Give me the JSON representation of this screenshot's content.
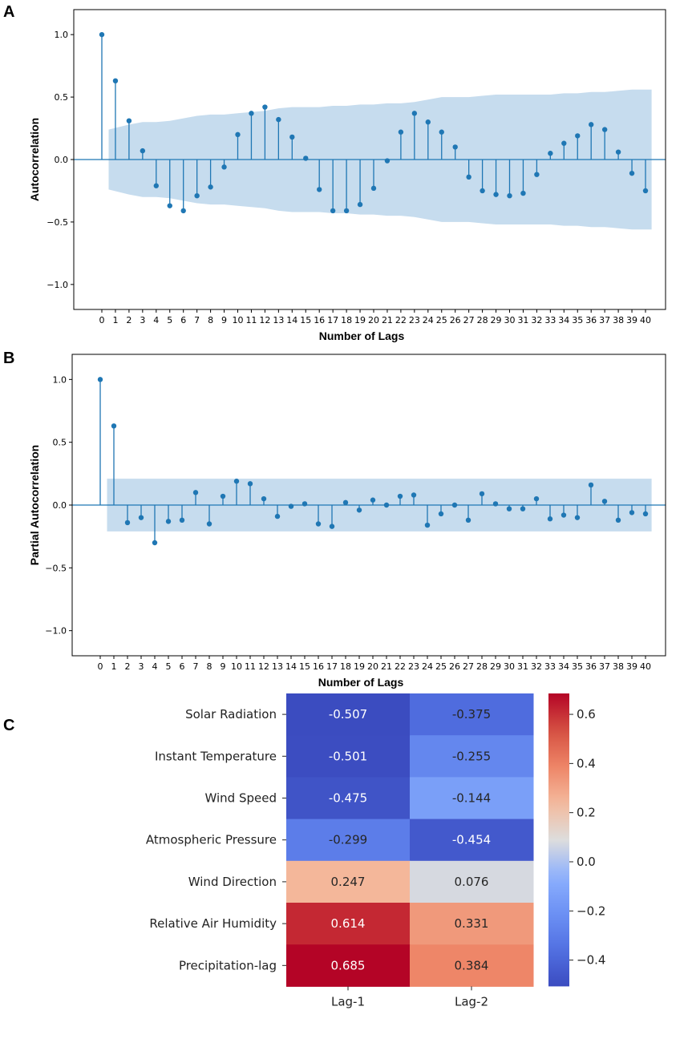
{
  "colors": {
    "stem": "#1f77b4",
    "band": "#c6dcee",
    "axis": "#000000"
  },
  "chart_data": [
    {
      "panel": "A",
      "type": "stem",
      "ylabel": "Autocorrelation",
      "xlabel": "Number of Lags",
      "ylim": [
        -1.2,
        1.2
      ],
      "yticks": [
        "1.0",
        "0.5",
        "0.0",
        "−0.5",
        "−1.0"
      ],
      "ytick_values": [
        1.0,
        0.5,
        0.0,
        -0.5,
        -1.0
      ],
      "x": [
        0,
        1,
        2,
        3,
        4,
        5,
        6,
        7,
        8,
        9,
        10,
        11,
        12,
        13,
        14,
        15,
        16,
        17,
        18,
        19,
        20,
        21,
        22,
        23,
        24,
        25,
        26,
        27,
        28,
        29,
        30,
        31,
        32,
        33,
        34,
        35,
        36,
        37,
        38,
        39,
        40
      ],
      "xtick_labels": [
        "0",
        "1",
        "2",
        "3",
        "4",
        "5",
        "6",
        "7",
        "8",
        "9",
        "10",
        "11",
        "12",
        "13",
        "14",
        "15",
        "16",
        "17",
        "18",
        "19",
        "20",
        "21",
        "22",
        "23",
        "24",
        "25",
        "26",
        "27",
        "28",
        "29",
        "30",
        "31",
        "32",
        "33",
        "34",
        "35",
        "36",
        "37",
        "38",
        "39",
        "40"
      ],
      "values": [
        1.0,
        0.63,
        0.31,
        0.07,
        -0.21,
        -0.37,
        -0.41,
        -0.29,
        -0.22,
        -0.06,
        0.2,
        0.37,
        0.42,
        0.32,
        0.18,
        0.01,
        -0.24,
        -0.41,
        -0.41,
        -0.36,
        -0.23,
        -0.01,
        0.22,
        0.37,
        0.3,
        0.22,
        0.1,
        -0.14,
        -0.25,
        -0.28,
        -0.29,
        -0.27,
        -0.12,
        0.05,
        0.13,
        0.19,
        0.28,
        0.24,
        0.06,
        -0.11,
        -0.25
      ],
      "confidence_band": [
        0.21,
        0.24,
        0.28,
        0.3,
        0.3,
        0.31,
        0.33,
        0.35,
        0.36,
        0.36,
        0.37,
        0.38,
        0.39,
        0.41,
        0.42,
        0.42,
        0.42,
        0.43,
        0.43,
        0.44,
        0.44,
        0.45,
        0.45,
        0.46,
        0.48,
        0.5,
        0.5,
        0.5,
        0.51,
        0.52,
        0.52,
        0.52,
        0.52,
        0.52,
        0.53,
        0.53,
        0.54,
        0.54,
        0.55,
        0.56,
        0.56
      ]
    },
    {
      "panel": "B",
      "type": "stem",
      "ylabel": "Partial Autocorrelation",
      "xlabel": "Number of Lags",
      "ylim": [
        -1.2,
        1.2
      ],
      "yticks": [
        "1.0",
        "0.5",
        "0.0",
        "−0.5",
        "−1.0"
      ],
      "ytick_values": [
        1.0,
        0.5,
        0.0,
        -0.5,
        -1.0
      ],
      "x": [
        0,
        1,
        2,
        3,
        4,
        5,
        6,
        7,
        8,
        9,
        10,
        11,
        12,
        13,
        14,
        15,
        16,
        17,
        18,
        19,
        20,
        21,
        22,
        23,
        24,
        25,
        26,
        27,
        28,
        29,
        30,
        31,
        32,
        33,
        34,
        35,
        36,
        37,
        38,
        39,
        40
      ],
      "xtick_labels": [
        "0",
        "1",
        "2",
        "3",
        "4",
        "5",
        "6",
        "7",
        "8",
        "9",
        "10",
        "11",
        "12",
        "13",
        "14",
        "15",
        "16",
        "17",
        "18",
        "19",
        "20",
        "21",
        "22",
        "23",
        "24",
        "25",
        "26",
        "27",
        "28",
        "29",
        "30",
        "31",
        "32",
        "33",
        "34",
        "35",
        "36",
        "37",
        "38",
        "39",
        "40"
      ],
      "values": [
        1.0,
        0.63,
        -0.14,
        -0.1,
        -0.3,
        -0.13,
        -0.12,
        0.1,
        -0.15,
        0.07,
        0.19,
        0.17,
        0.05,
        -0.09,
        -0.01,
        0.01,
        -0.15,
        -0.17,
        0.02,
        -0.04,
        0.04,
        0.0,
        0.07,
        0.08,
        -0.16,
        -0.07,
        0.0,
        -0.12,
        0.09,
        0.01,
        -0.03,
        -0.03,
        0.05,
        -0.11,
        -0.08,
        -0.1,
        0.16,
        0.03,
        -0.12,
        -0.06,
        -0.07
      ],
      "confidence_band": [
        0.21,
        0.21,
        0.21,
        0.21,
        0.21,
        0.21,
        0.21,
        0.21,
        0.21,
        0.21,
        0.21,
        0.21,
        0.21,
        0.21,
        0.21,
        0.21,
        0.21,
        0.21,
        0.21,
        0.21,
        0.21,
        0.21,
        0.21,
        0.21,
        0.21,
        0.21,
        0.21,
        0.21,
        0.21,
        0.21,
        0.21,
        0.21,
        0.21,
        0.21,
        0.21,
        0.21,
        0.21,
        0.21,
        0.21,
        0.21,
        0.21
      ]
    },
    {
      "panel": "C",
      "type": "heatmap",
      "rows": [
        "Solar Radiation",
        "Instant Temperature",
        "Wind Speed",
        "Atmospheric Pressure",
        "Wind Direction",
        "Relative Air Humidity",
        "Precipitation-lag"
      ],
      "columns": [
        "Lag-1",
        "Lag-2"
      ],
      "values": [
        [
          -0.507,
          -0.375
        ],
        [
          -0.501,
          -0.255
        ],
        [
          -0.475,
          -0.144
        ],
        [
          -0.299,
          -0.454
        ],
        [
          0.247,
          0.076
        ],
        [
          0.614,
          0.331
        ],
        [
          0.685,
          0.384
        ]
      ],
      "value_labels": [
        [
          "-0.507",
          "-0.375"
        ],
        [
          "-0.501",
          "-0.255"
        ],
        [
          "-0.475",
          "-0.144"
        ],
        [
          "-0.299",
          "-0.454"
        ],
        [
          "0.247",
          "0.076"
        ],
        [
          "0.614",
          "0.331"
        ],
        [
          "0.685",
          "0.384"
        ]
      ],
      "colormap": "coolwarm",
      "vmin": -0.507,
      "vmax": 0.685,
      "colorbar_ticks": [
        "0.6",
        "0.4",
        "0.2",
        "0.0",
        "−0.2",
        "−0.4"
      ],
      "colorbar_tick_values": [
        0.6,
        0.4,
        0.2,
        0.0,
        -0.2,
        -0.4
      ]
    }
  ]
}
